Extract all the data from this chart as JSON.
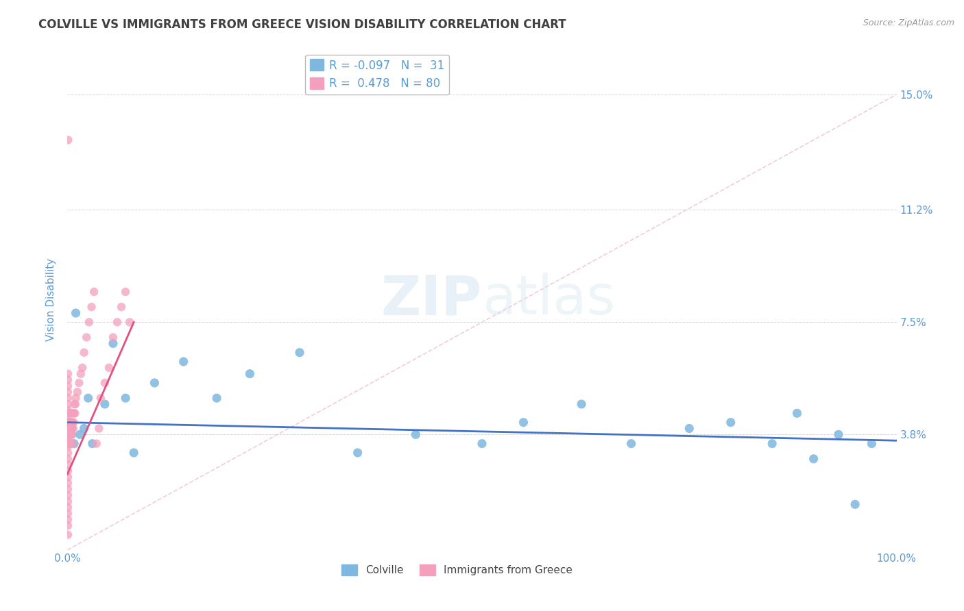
{
  "title": "COLVILLE VS IMMIGRANTS FROM GREECE VISION DISABILITY CORRELATION CHART",
  "source": "Source: ZipAtlas.com",
  "ylabel": "Vision Disability",
  "xlim": [
    0.0,
    100.0
  ],
  "ylim": [
    0.0,
    16.5
  ],
  "ytick_vals": [
    3.8,
    7.5,
    11.2,
    15.0
  ],
  "ytick_labels": [
    "3.8%",
    "7.5%",
    "11.2%",
    "15.0%"
  ],
  "xtick_vals": [
    0.0,
    100.0
  ],
  "xtick_labels": [
    "0.0%",
    "100.0%"
  ],
  "colville_color": "#7EB8E0",
  "greece_color": "#F4A0BC",
  "trendline_blue_color": "#4472C4",
  "trendline_pink_color": "#E05080",
  "diag_color": "#F0C0CC",
  "watermark_color": "#D0E4F0",
  "background_color": "#FFFFFF",
  "grid_color": "#CCCCCC",
  "axis_label_color": "#5B9BD5",
  "title_color": "#404040",
  "legend_box_color": "#5B9BD5",
  "colville_x": [
    0.3,
    0.5,
    0.8,
    1.0,
    1.5,
    2.0,
    2.5,
    3.0,
    4.5,
    5.5,
    7.0,
    8.0,
    10.5,
    14.0,
    18.0,
    22.0,
    28.0,
    35.0,
    42.0,
    50.0,
    55.0,
    62.0,
    68.0,
    75.0,
    80.0,
    85.0,
    88.0,
    90.0,
    93.0,
    95.0,
    97.0
  ],
  "colville_y": [
    4.2,
    3.8,
    3.5,
    7.8,
    3.8,
    4.0,
    5.0,
    3.5,
    4.8,
    6.8,
    5.0,
    3.2,
    5.5,
    6.2,
    5.0,
    5.8,
    6.5,
    3.2,
    3.8,
    3.5,
    4.2,
    4.8,
    3.5,
    4.0,
    4.2,
    3.5,
    4.5,
    3.0,
    3.8,
    1.5,
    3.5
  ],
  "greece_x": [
    0.05,
    0.05,
    0.05,
    0.05,
    0.05,
    0.05,
    0.05,
    0.05,
    0.05,
    0.05,
    0.05,
    0.05,
    0.05,
    0.05,
    0.05,
    0.05,
    0.05,
    0.05,
    0.05,
    0.05,
    0.05,
    0.05,
    0.05,
    0.05,
    0.05,
    0.05,
    0.05,
    0.05,
    0.05,
    0.05,
    0.1,
    0.12,
    0.15,
    0.18,
    0.2,
    0.25,
    0.3,
    0.35,
    0.4,
    0.45,
    0.5,
    0.55,
    0.6,
    0.65,
    0.7,
    0.75,
    0.8,
    0.85,
    0.9,
    0.95,
    1.0,
    1.2,
    1.4,
    1.6,
    1.8,
    2.0,
    2.3,
    2.6,
    2.9,
    3.2,
    3.5,
    3.8,
    4.0,
    4.5,
    5.0,
    5.5,
    6.0,
    6.5,
    7.0,
    7.5,
    0.08,
    0.1,
    0.15,
    0.2,
    0.25,
    0.3,
    0.4,
    0.5,
    0.6,
    0.55
  ],
  "greece_y": [
    0.5,
    0.8,
    1.0,
    1.2,
    1.4,
    1.6,
    1.8,
    2.0,
    2.2,
    2.4,
    2.6,
    2.8,
    3.0,
    3.2,
    3.4,
    3.5,
    3.6,
    3.7,
    3.8,
    4.0,
    4.2,
    4.4,
    4.5,
    4.6,
    4.8,
    5.0,
    5.2,
    5.4,
    5.6,
    5.8,
    3.5,
    3.8,
    3.5,
    3.8,
    4.0,
    4.2,
    3.5,
    3.8,
    4.0,
    4.2,
    3.8,
    4.0,
    4.2,
    4.5,
    4.0,
    4.2,
    4.5,
    4.8,
    4.5,
    4.8,
    5.0,
    5.2,
    5.5,
    5.8,
    6.0,
    6.5,
    7.0,
    7.5,
    8.0,
    8.5,
    3.5,
    4.0,
    5.0,
    5.5,
    6.0,
    7.0,
    7.5,
    8.0,
    8.5,
    7.5,
    13.5,
    3.5,
    4.0,
    4.5,
    3.5,
    4.0,
    3.8,
    4.0,
    3.5,
    4.2
  ],
  "colville_trend_x": [
    0,
    100
  ],
  "colville_trend_y": [
    4.2,
    3.6
  ],
  "greece_trend_x": [
    0,
    8
  ],
  "greece_trend_y": [
    2.5,
    7.5
  ],
  "diag_line_x": [
    0,
    100
  ],
  "diag_line_y": [
    0,
    15.0
  ]
}
